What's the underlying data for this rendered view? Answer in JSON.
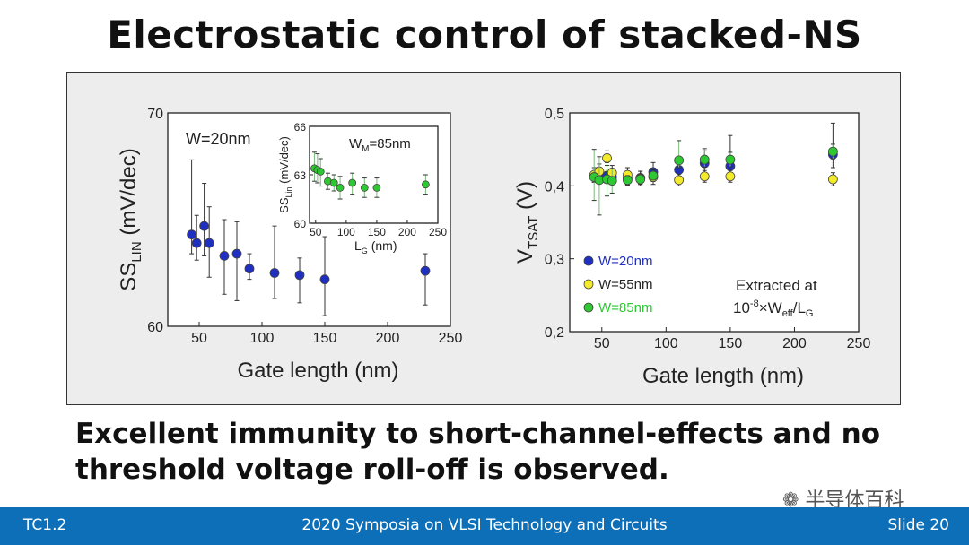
{
  "slide": {
    "title": "Electrostatic control of stacked-NS",
    "caption_line1": "Excellent immunity to short-channel-effects and no",
    "caption_line2": "threshold voltage roll-off is observed.",
    "footer_left": "TC1.2",
    "footer_center": "2020 Symposia on VLSI Technology and Circuits",
    "footer_right": "Slide 20",
    "watermark": "半导体百科"
  },
  "chart_data": [
    {
      "type": "scatter",
      "xlabel": "Gate length (nm)",
      "ylabel": "SS",
      "ylabel_sub": "LIN",
      "ylabel_unit": " (mV/dec)",
      "xlim": [
        25,
        250
      ],
      "ylim": [
        60,
        70
      ],
      "xticks": [
        50,
        100,
        150,
        200,
        250
      ],
      "yticks": [
        60,
        70
      ],
      "annotation": "W=20nm",
      "series": [
        {
          "color": "#1f2fbf",
          "points": [
            {
              "x": 44,
              "y": 64.3,
              "lo": 63.4,
              "hi": 67.8
            },
            {
              "x": 48,
              "y": 63.9,
              "lo": 63.1,
              "hi": 65.2
            },
            {
              "x": 54,
              "y": 64.7,
              "lo": 63.3,
              "hi": 66.7
            },
            {
              "x": 58,
              "y": 63.9,
              "lo": 62.3,
              "hi": 65.6
            },
            {
              "x": 70,
              "y": 63.3,
              "lo": 61.5,
              "hi": 65.0
            },
            {
              "x": 80,
              "y": 63.4,
              "lo": 61.2,
              "hi": 64.9
            },
            {
              "x": 90,
              "y": 62.7,
              "lo": 62.2,
              "hi": 63.4
            },
            {
              "x": 110,
              "y": 62.5,
              "lo": 61.3,
              "hi": 64.7
            },
            {
              "x": 130,
              "y": 62.4,
              "lo": 61.1,
              "hi": 63.2
            },
            {
              "x": 150,
              "y": 62.2,
              "lo": 60.5,
              "hi": 64.2
            },
            {
              "x": 230,
              "y": 62.6,
              "lo": 61.0,
              "hi": 63.4
            }
          ]
        }
      ]
    },
    {
      "type": "scatter",
      "inset": true,
      "xlabel": "L",
      "xlabel_sub": "G",
      "xlabel_unit": " (nm)",
      "ylabel": "SS",
      "ylabel_sub": "Lin",
      "ylabel_unit": " (mV/dec)",
      "xlim": [
        40,
        250
      ],
      "ylim": [
        60,
        66
      ],
      "xticks": [
        50,
        100,
        150,
        200,
        250
      ],
      "yticks": [
        60,
        63,
        66
      ],
      "annotation": "W",
      "annotation_sub": "M",
      "annotation_rest": "=85nm",
      "series": [
        {
          "color": "#2ec832",
          "points": [
            {
              "x": 48,
              "y": 63.4,
              "lo": 62.6,
              "hi": 64.4
            },
            {
              "x": 53,
              "y": 63.3,
              "lo": 62.5,
              "hi": 64.3
            },
            {
              "x": 58,
              "y": 63.2,
              "lo": 62.3,
              "hi": 64.0
            },
            {
              "x": 70,
              "y": 62.6,
              "lo": 62.1,
              "hi": 63.1
            },
            {
              "x": 80,
              "y": 62.5,
              "lo": 62.0,
              "hi": 63.0
            },
            {
              "x": 90,
              "y": 62.2,
              "lo": 61.5,
              "hi": 62.9
            },
            {
              "x": 110,
              "y": 62.5,
              "lo": 61.8,
              "hi": 63.1
            },
            {
              "x": 130,
              "y": 62.2,
              "lo": 61.6,
              "hi": 62.8
            },
            {
              "x": 150,
              "y": 62.2,
              "lo": 61.6,
              "hi": 62.8
            },
            {
              "x": 230,
              "y": 62.4,
              "lo": 61.8,
              "hi": 63.0
            }
          ]
        }
      ]
    },
    {
      "type": "scatter",
      "xlabel": "Gate length (nm)",
      "ylabel": "V",
      "ylabel_sub": "TSAT",
      "ylabel_unit": " (V)",
      "xlim": [
        25,
        250
      ],
      "ylim": [
        0.2,
        0.5
      ],
      "xticks": [
        50,
        100,
        150,
        200,
        250
      ],
      "yticks": [
        "0,2",
        "0,3",
        "0,4",
        "0,5"
      ],
      "ytick_values": [
        0.2,
        0.3,
        0.4,
        0.5
      ],
      "annotation_line1": "Extracted at",
      "annotation_line2_pre": "10",
      "annotation_line2_sup": "-8",
      "annotation_line2_mid": "×W",
      "annotation_line2_sub": "eff",
      "annotation_line2_post": "/L",
      "annotation_line2_sub2": "G",
      "series": [
        {
          "name": "W=20nm",
          "color": "#1f2fbf",
          "points": [
            {
              "x": 44,
              "y": 0.414,
              "lo": 0.405,
              "hi": 0.423
            },
            {
              "x": 48,
              "y": 0.413,
              "lo": 0.404,
              "hi": 0.422
            },
            {
              "x": 54,
              "y": 0.414,
              "lo": 0.405,
              "hi": 0.423
            },
            {
              "x": 58,
              "y": 0.412,
              "lo": 0.403,
              "hi": 0.421
            },
            {
              "x": 70,
              "y": 0.41,
              "lo": 0.401,
              "hi": 0.419
            },
            {
              "x": 80,
              "y": 0.411,
              "lo": 0.402,
              "hi": 0.42
            },
            {
              "x": 90,
              "y": 0.419,
              "lo": 0.406,
              "hi": 0.432
            },
            {
              "x": 110,
              "y": 0.422,
              "lo": 0.409,
              "hi": 0.44
            },
            {
              "x": 130,
              "y": 0.431,
              "lo": 0.418,
              "hi": 0.448
            },
            {
              "x": 150,
              "y": 0.427,
              "lo": 0.41,
              "hi": 0.469
            },
            {
              "x": 230,
              "y": 0.443,
              "lo": 0.425,
              "hi": 0.486
            }
          ]
        },
        {
          "name": "W=55nm",
          "color": "#f2ea2a",
          "points": [
            {
              "x": 44,
              "y": 0.415,
              "lo": 0.405,
              "hi": 0.425
            },
            {
              "x": 48,
              "y": 0.42,
              "lo": 0.41,
              "hi": 0.43
            },
            {
              "x": 54,
              "y": 0.438,
              "lo": 0.428,
              "hi": 0.448
            },
            {
              "x": 58,
              "y": 0.418,
              "lo": 0.408,
              "hi": 0.428
            },
            {
              "x": 70,
              "y": 0.415,
              "lo": 0.405,
              "hi": 0.425
            },
            {
              "x": 80,
              "y": 0.41,
              "lo": 0.4,
              "hi": 0.42
            },
            {
              "x": 90,
              "y": 0.412,
              "lo": 0.402,
              "hi": 0.422
            },
            {
              "x": 110,
              "y": 0.408,
              "lo": 0.4,
              "hi": 0.416
            },
            {
              "x": 130,
              "y": 0.413,
              "lo": 0.405,
              "hi": 0.421
            },
            {
              "x": 150,
              "y": 0.413,
              "lo": 0.405,
              "hi": 0.421
            },
            {
              "x": 230,
              "y": 0.409,
              "lo": 0.4,
              "hi": 0.418
            }
          ]
        },
        {
          "name": "W=85nm",
          "color": "#2ec832",
          "points": [
            {
              "x": 44,
              "y": 0.412,
              "lo": 0.38,
              "hi": 0.45
            },
            {
              "x": 48,
              "y": 0.408,
              "lo": 0.36,
              "hi": 0.44
            },
            {
              "x": 54,
              "y": 0.409,
              "lo": 0.386,
              "hi": 0.432
            },
            {
              "x": 58,
              "y": 0.407,
              "lo": 0.39,
              "hi": 0.424
            },
            {
              "x": 70,
              "y": 0.408,
              "lo": 0.402,
              "hi": 0.414
            },
            {
              "x": 80,
              "y": 0.409,
              "lo": 0.403,
              "hi": 0.415
            },
            {
              "x": 90,
              "y": 0.414,
              "lo": 0.408,
              "hi": 0.42
            },
            {
              "x": 110,
              "y": 0.435,
              "lo": 0.425,
              "hi": 0.462
            },
            {
              "x": 130,
              "y": 0.436,
              "lo": 0.426,
              "hi": 0.451
            },
            {
              "x": 150,
              "y": 0.436,
              "lo": 0.426,
              "hi": 0.446
            },
            {
              "x": 230,
              "y": 0.447,
              "lo": 0.437,
              "hi": 0.457
            }
          ]
        }
      ]
    }
  ]
}
